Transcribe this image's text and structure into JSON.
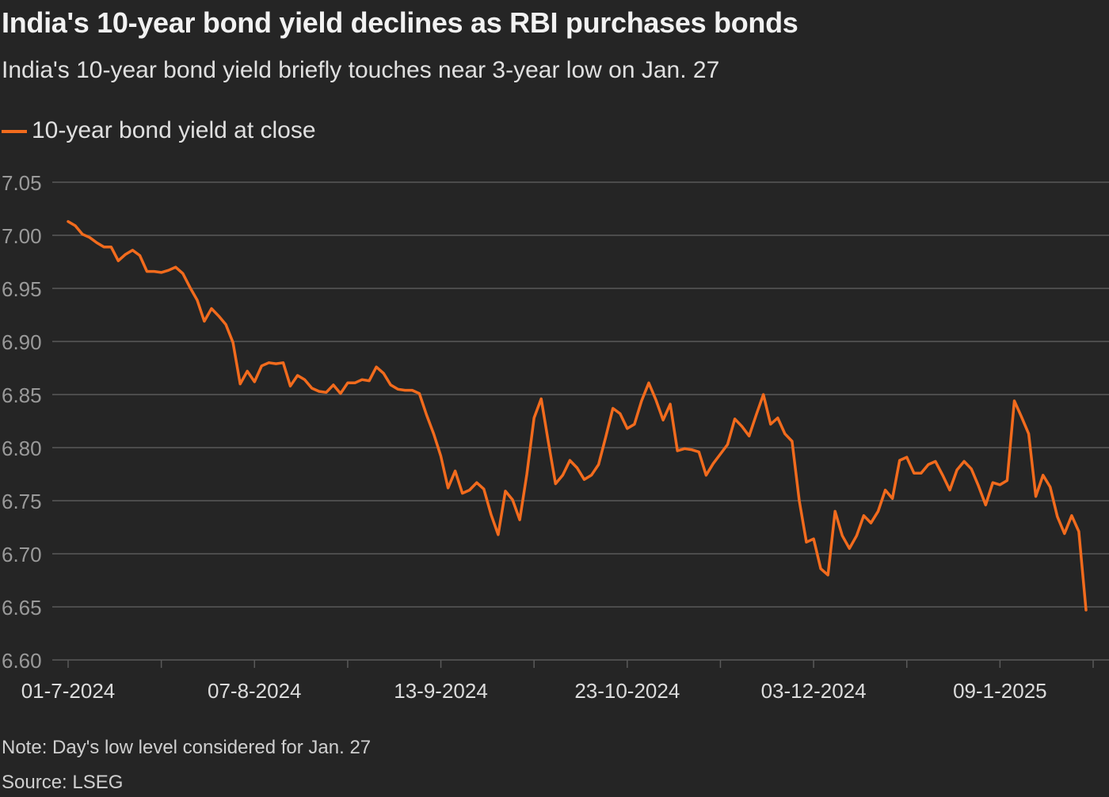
{
  "title": "India's 10-year bond yield declines as RBI purchases bonds",
  "subtitle": "India's 10-year bond yield briefly touches near 3-year low on Jan. 27",
  "note": "Note: Day's low level considered for Jan. 27",
  "source": "Source: LSEG",
  "colors": {
    "line": "#f26b1d",
    "grid": "#5a5a5a",
    "axis_text": "#9a9a9a",
    "tick_label": "#dcdcdc",
    "background": "#252525"
  },
  "chart_data": {
    "type": "line",
    "title": "India's 10-year bond yield declines as RBI purchases bonds",
    "xlabel": "",
    "ylabel": "",
    "ylim": [
      6.6,
      7.05
    ],
    "y_ticks": [
      "7.05",
      "7.00",
      "6.95",
      "6.90",
      "6.85",
      "6.80",
      "6.75",
      "6.70",
      "6.65",
      "6.60"
    ],
    "x_tick_labels": [
      "01-7-2024",
      "07-8-2024",
      "13-9-2024",
      "23-10-2024",
      "03-12-2024",
      "09-1-2025"
    ],
    "x_label_positions": [
      0,
      26,
      52,
      78,
      104,
      130
    ],
    "x_minor_tick_positions": [
      13,
      39,
      65,
      91,
      117,
      143
    ],
    "x_range": [
      0,
      143
    ],
    "legend": "top-left",
    "series": [
      {
        "name": "10-year bond yield at close",
        "values": [
          7.013,
          7.009,
          7.001,
          6.998,
          6.993,
          6.989,
          6.989,
          6.976,
          6.982,
          6.986,
          6.981,
          6.966,
          6.966,
          6.965,
          6.967,
          6.97,
          6.964,
          6.951,
          6.939,
          6.919,
          6.931,
          6.924,
          6.916,
          6.899,
          6.86,
          6.872,
          6.862,
          6.877,
          6.88,
          6.879,
          6.88,
          6.858,
          6.868,
          6.864,
          6.856,
          6.853,
          6.852,
          6.859,
          6.851,
          6.861,
          6.861,
          6.864,
          6.863,
          6.876,
          6.87,
          6.859,
          6.855,
          6.854,
          6.854,
          6.851,
          6.831,
          6.813,
          6.792,
          6.762,
          6.778,
          6.757,
          6.76,
          6.767,
          6.761,
          6.737,
          6.718,
          6.759,
          6.751,
          6.732,
          6.775,
          6.828,
          6.846,
          6.805,
          6.766,
          6.774,
          6.788,
          6.781,
          6.77,
          6.774,
          6.784,
          6.81,
          6.837,
          6.832,
          6.818,
          6.822,
          6.844,
          6.861,
          6.845,
          6.826,
          6.841,
          6.797,
          6.799,
          6.798,
          6.796,
          6.774,
          6.785,
          6.794,
          6.803,
          6.827,
          6.82,
          6.811,
          6.831,
          6.85,
          6.822,
          6.828,
          6.813,
          6.806,
          6.75,
          6.711,
          6.714,
          6.686,
          6.68,
          6.74,
          6.717,
          6.705,
          6.717,
          6.736,
          6.729,
          6.74,
          6.76,
          6.752,
          6.788,
          6.791,
          6.776,
          6.776,
          6.784,
          6.787,
          6.774,
          6.76,
          6.779,
          6.787,
          6.78,
          6.764,
          6.746,
          6.767,
          6.765,
          6.769,
          6.844,
          6.829,
          6.813,
          6.754,
          6.774,
          6.763,
          6.735,
          6.719,
          6.736,
          6.721,
          6.647
        ]
      }
    ]
  }
}
